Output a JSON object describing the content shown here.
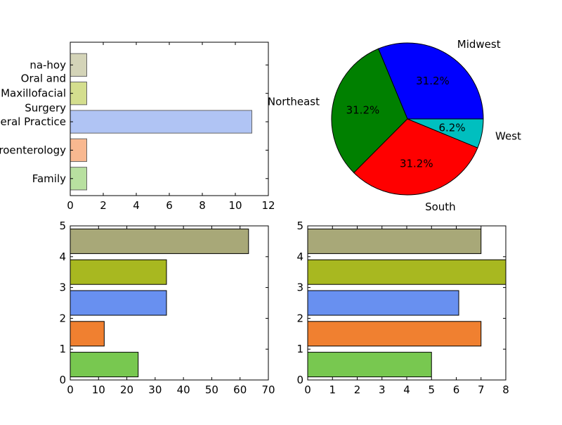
{
  "chart_data": [
    {
      "type": "bar",
      "orientation": "horizontal",
      "categories": [
        "Family",
        "Gastroenterology",
        "General Practice",
        "Oral and Maxillofacial Surgery",
        "na-hoy"
      ],
      "category_label_lines": [
        [
          "Family"
        ],
        [
          "Gastroenterology"
        ],
        [
          "General Practice"
        ],
        [
          "Oral and",
          "Maxillofacial",
          "Surgery"
        ],
        [
          "na-hoy"
        ]
      ],
      "values": [
        1,
        1,
        11,
        1,
        1
      ],
      "colors": [
        "#b8e0a0",
        "#f8b890",
        "#b0c4f4",
        "#d4de8e",
        "#d4d4b8"
      ],
      "xlim": [
        0,
        12
      ],
      "xticks": [
        "0",
        "2",
        "4",
        "6",
        "8",
        "10",
        "12"
      ],
      "title": "",
      "xlabel": "",
      "ylabel": ""
    },
    {
      "type": "pie",
      "labels": [
        "Midwest",
        "Northeast",
        "South",
        "West"
      ],
      "values": [
        31.2,
        31.2,
        31.2,
        6.2
      ],
      "pct_labels": [
        "31.2%",
        "31.2%",
        "31.2%",
        "6.2%"
      ],
      "colors": [
        "#0000ff",
        "#008000",
        "#ff0000",
        "#00bfbf"
      ],
      "start_angle_deg": 0,
      "title": ""
    },
    {
      "type": "bar",
      "orientation": "horizontal",
      "values": [
        24,
        12,
        34,
        34,
        63
      ],
      "colors": [
        "#78c850",
        "#f08030",
        "#6890f0",
        "#a8b820",
        "#a8a878"
      ],
      "xlim": [
        0,
        70
      ],
      "xticks": [
        "0",
        "10",
        "20",
        "30",
        "40",
        "50",
        "60",
        "70"
      ],
      "ylim": [
        0,
        5
      ],
      "yticks": [
        "0",
        "1",
        "2",
        "3",
        "4",
        "5"
      ],
      "title": "",
      "xlabel": "",
      "ylabel": ""
    },
    {
      "type": "bar",
      "orientation": "horizontal",
      "values": [
        5,
        7,
        6.1,
        8,
        7
      ],
      "colors": [
        "#78c850",
        "#f08030",
        "#6890f0",
        "#a8b820",
        "#a8a878"
      ],
      "xlim": [
        0,
        8
      ],
      "xticks": [
        "0",
        "1",
        "2",
        "3",
        "4",
        "5",
        "6",
        "7",
        "8"
      ],
      "ylim": [
        0,
        5
      ],
      "yticks": [
        "0",
        "1",
        "2",
        "3",
        "4",
        "5"
      ],
      "title": "",
      "xlabel": "",
      "ylabel": ""
    }
  ]
}
